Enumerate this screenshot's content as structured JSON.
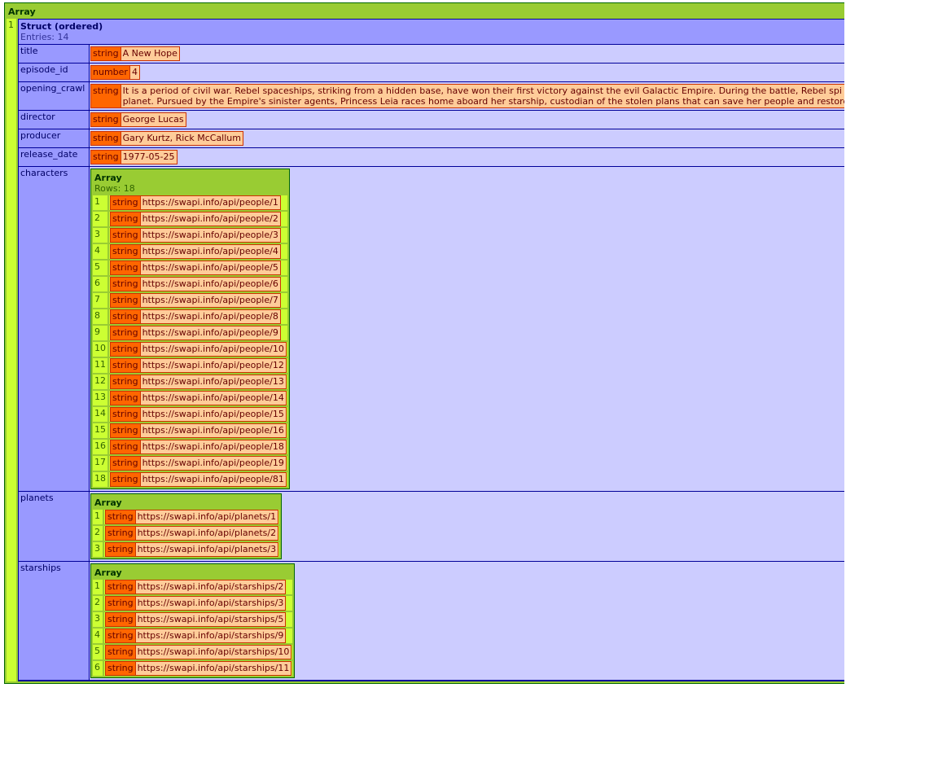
{
  "root": {
    "array_label": "Array",
    "index": "1"
  },
  "struct": {
    "label": "Struct (ordered)",
    "entries": "Entries: 14"
  },
  "fields": {
    "title": {
      "key": "title",
      "type": "string",
      "value": "A New Hope"
    },
    "episode_id": {
      "key": "episode_id",
      "type": "number",
      "value": "4"
    },
    "opening_crawl": {
      "key": "opening_crawl",
      "type": "string",
      "line1": "It is a period of civil war. Rebel spaceships, striking from a hidden base, have won their first victory against the evil Galactic Empire. During the battle, Rebel spi",
      "line2": "planet. Pursued by the Empire's sinister agents, Princess Leia races home aboard her starship, custodian of the stolen plans that can save her people and restore"
    },
    "director": {
      "key": "director",
      "type": "string",
      "value": "George Lucas"
    },
    "producer": {
      "key": "producer",
      "type": "string",
      "value": "Gary Kurtz, Rick McCallum"
    },
    "release_date": {
      "key": "release_date",
      "type": "string",
      "value": "1977-05-25"
    }
  },
  "characters": {
    "key": "characters",
    "array_label": "Array",
    "rows_label": "Rows: 18",
    "items": [
      {
        "i": "1",
        "type": "string",
        "value": "https://swapi.info/api/people/1"
      },
      {
        "i": "2",
        "type": "string",
        "value": "https://swapi.info/api/people/2"
      },
      {
        "i": "3",
        "type": "string",
        "value": "https://swapi.info/api/people/3"
      },
      {
        "i": "4",
        "type": "string",
        "value": "https://swapi.info/api/people/4"
      },
      {
        "i": "5",
        "type": "string",
        "value": "https://swapi.info/api/people/5"
      },
      {
        "i": "6",
        "type": "string",
        "value": "https://swapi.info/api/people/6"
      },
      {
        "i": "7",
        "type": "string",
        "value": "https://swapi.info/api/people/7"
      },
      {
        "i": "8",
        "type": "string",
        "value": "https://swapi.info/api/people/8"
      },
      {
        "i": "9",
        "type": "string",
        "value": "https://swapi.info/api/people/9"
      },
      {
        "i": "10",
        "type": "string",
        "value": "https://swapi.info/api/people/10"
      },
      {
        "i": "11",
        "type": "string",
        "value": "https://swapi.info/api/people/12"
      },
      {
        "i": "12",
        "type": "string",
        "value": "https://swapi.info/api/people/13"
      },
      {
        "i": "13",
        "type": "string",
        "value": "https://swapi.info/api/people/14"
      },
      {
        "i": "14",
        "type": "string",
        "value": "https://swapi.info/api/people/15"
      },
      {
        "i": "15",
        "type": "string",
        "value": "https://swapi.info/api/people/16"
      },
      {
        "i": "16",
        "type": "string",
        "value": "https://swapi.info/api/people/18"
      },
      {
        "i": "17",
        "type": "string",
        "value": "https://swapi.info/api/people/19"
      },
      {
        "i": "18",
        "type": "string",
        "value": "https://swapi.info/api/people/81"
      }
    ]
  },
  "planets": {
    "key": "planets",
    "array_label": "Array",
    "items": [
      {
        "i": "1",
        "type": "string",
        "value": "https://swapi.info/api/planets/1"
      },
      {
        "i": "2",
        "type": "string",
        "value": "https://swapi.info/api/planets/2"
      },
      {
        "i": "3",
        "type": "string",
        "value": "https://swapi.info/api/planets/3"
      }
    ]
  },
  "starships": {
    "key": "starships",
    "array_label": "Array",
    "items": [
      {
        "i": "1",
        "type": "string",
        "value": "https://swapi.info/api/starships/2"
      },
      {
        "i": "2",
        "type": "string",
        "value": "https://swapi.info/api/starships/3"
      },
      {
        "i": "3",
        "type": "string",
        "value": "https://swapi.info/api/starships/5"
      },
      {
        "i": "4",
        "type": "string",
        "value": "https://swapi.info/api/starships/9"
      },
      {
        "i": "5",
        "type": "string",
        "value": "https://swapi.info/api/starships/10"
      },
      {
        "i": "6",
        "type": "string",
        "value": "https://swapi.info/api/starships/11"
      }
    ]
  }
}
